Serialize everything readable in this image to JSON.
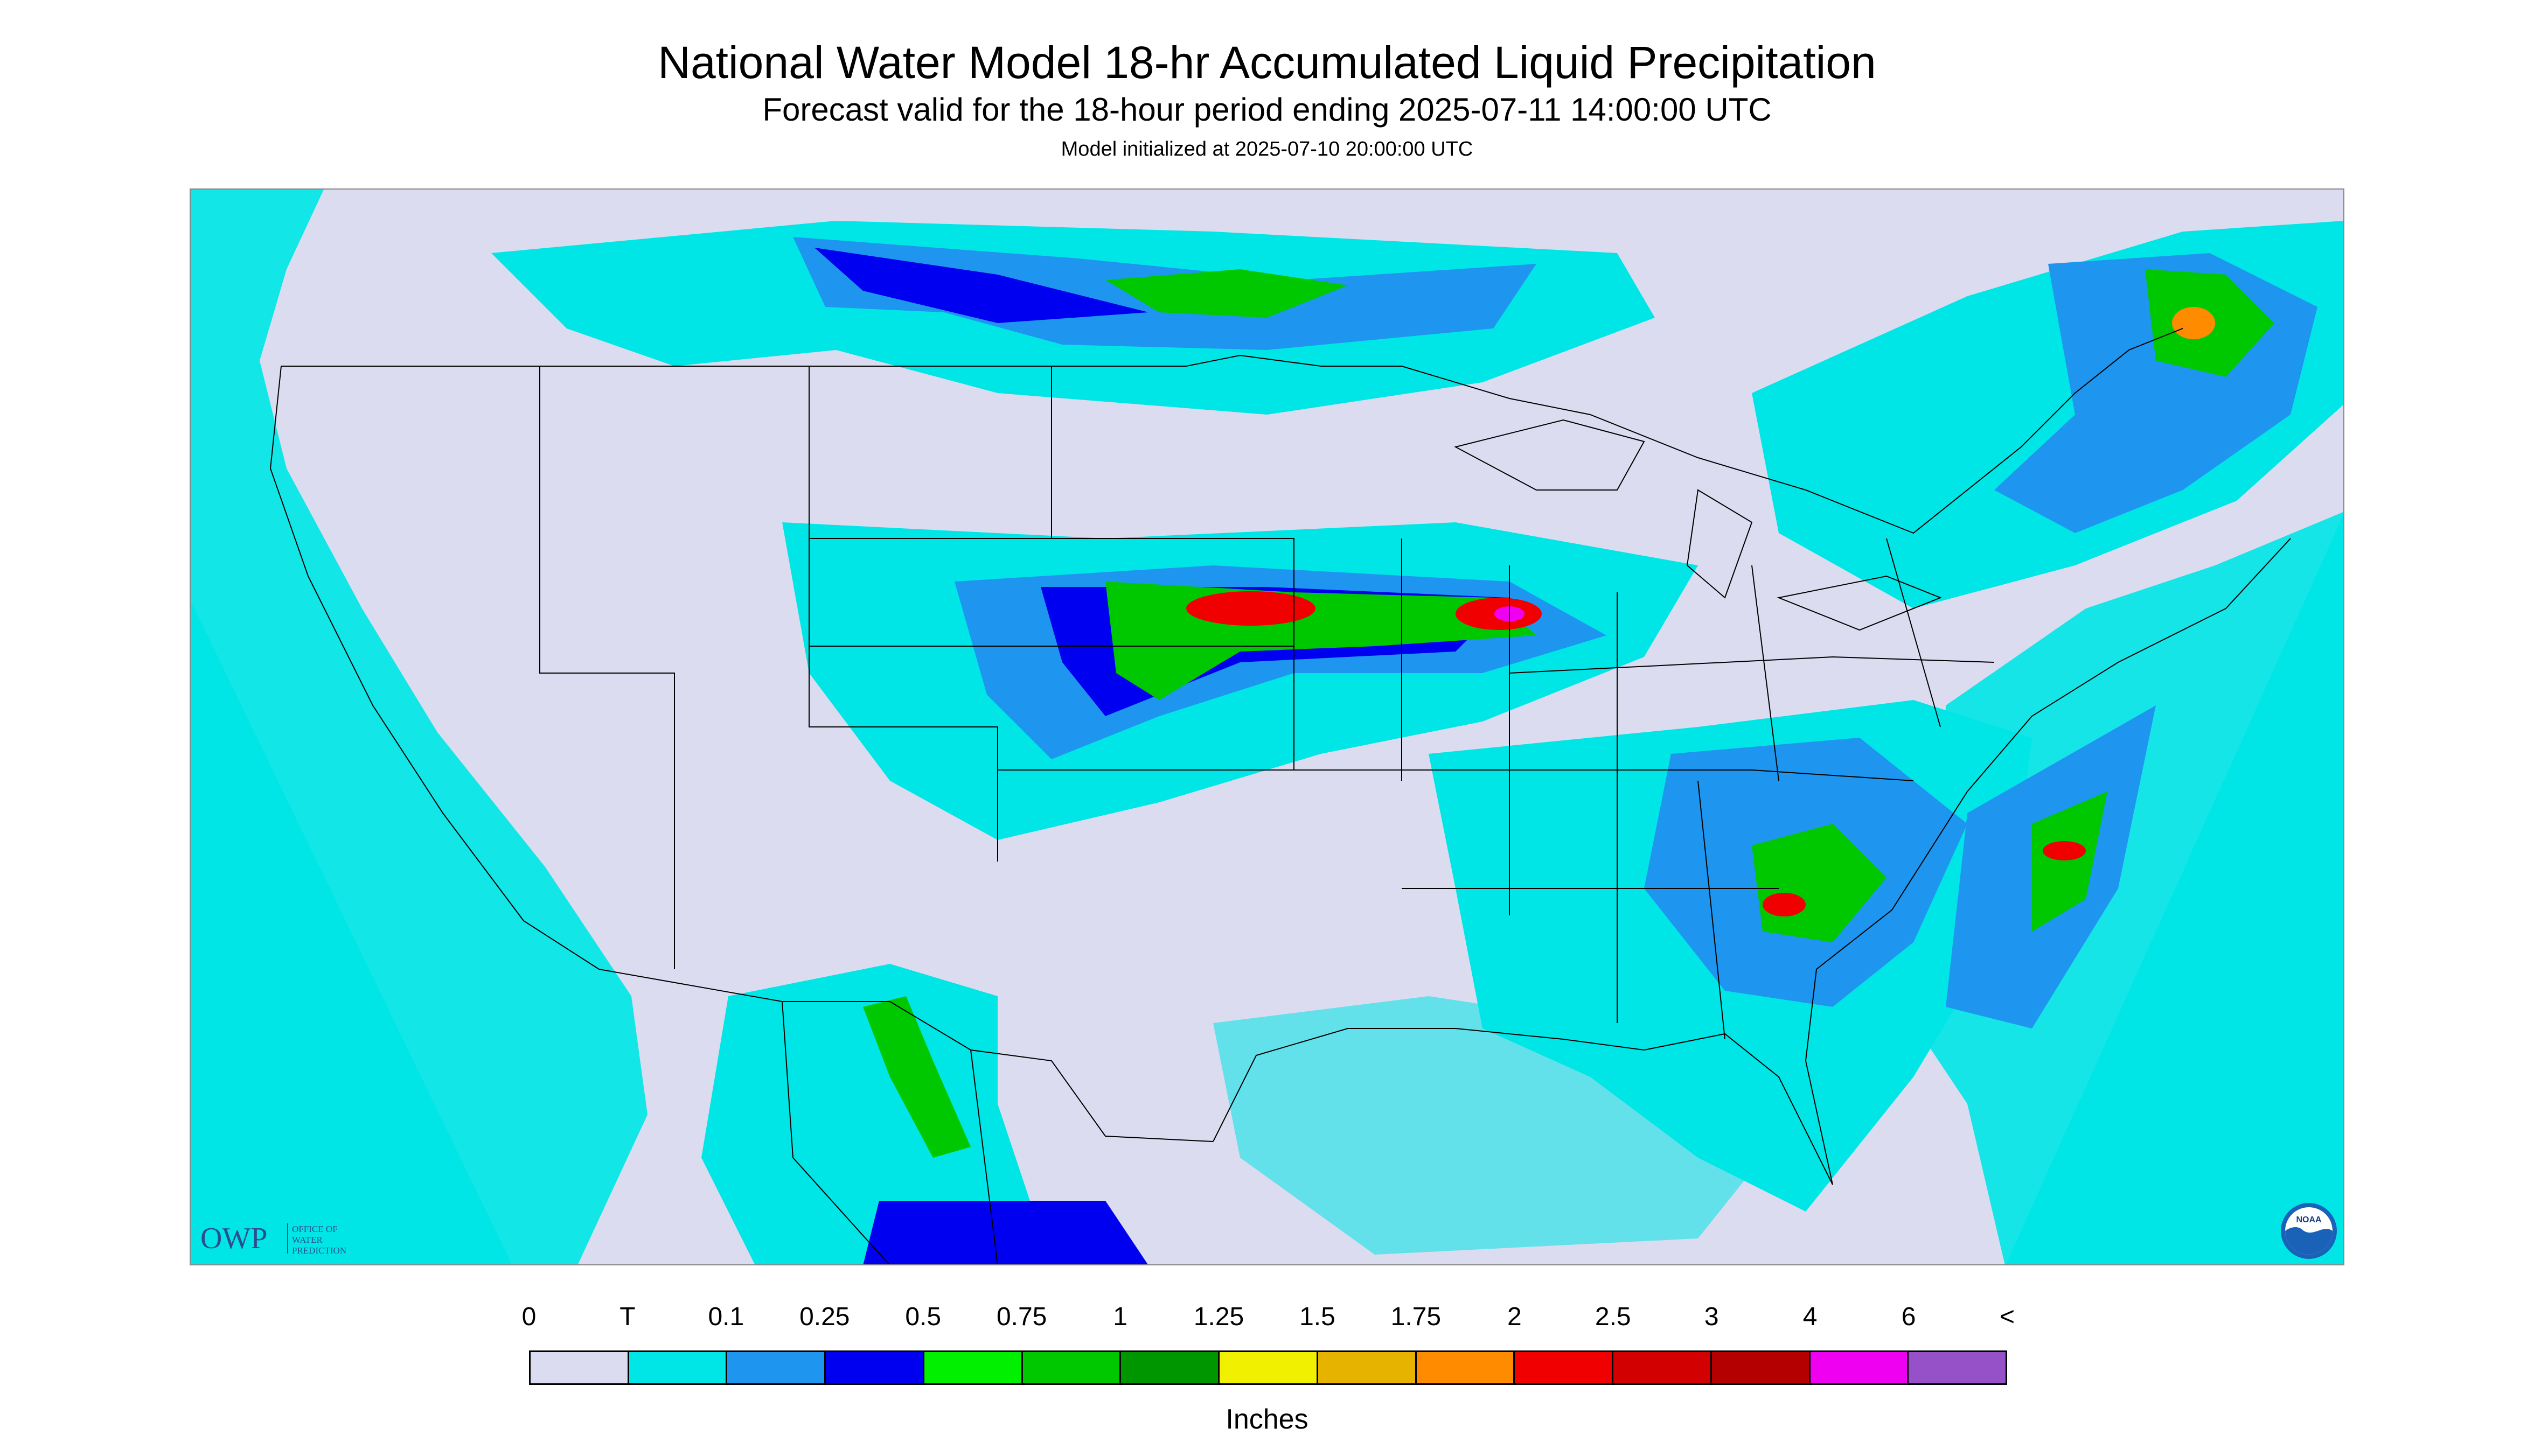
{
  "title": "National Water Model 18-hr Accumulated Liquid Precipitation",
  "subtitle": "Forecast valid for the 18-hour period ending 2025-07-11 14:00:00 UTC",
  "init_note": "Model initialized at 2025-07-10 20:00:00 UTC",
  "logos": {
    "owp_mark": "OWP",
    "owp_text": [
      "OFFICE OF",
      "WATER",
      "PREDICTION"
    ],
    "noaa_text": "NOAA"
  },
  "colors": {
    "no_precip": "#dcdcf0",
    "trace": "#00e6e6",
    "light_blue": "#1e96f0",
    "blue": "#0000f0",
    "green": "#00f000",
    "heavy_red": "#f00000",
    "magenta": "#f000f0"
  },
  "legend": {
    "labels": [
      "0",
      "T",
      "0.1",
      "0.25",
      "0.5",
      "0.75",
      "1",
      "1.25",
      "1.5",
      "1.75",
      "2",
      "2.5",
      "3",
      "4",
      "6",
      "<"
    ],
    "colors": [
      "#dcdcf0",
      "#00e6e6",
      "#1e96f0",
      "#0000f0",
      "#00f000",
      "#00c800",
      "#009600",
      "#f0f000",
      "#e6b400",
      "#ff8c00",
      "#f00000",
      "#d20000",
      "#b40000",
      "#f000f0",
      "#9650c8"
    ],
    "units": "Inches"
  }
}
